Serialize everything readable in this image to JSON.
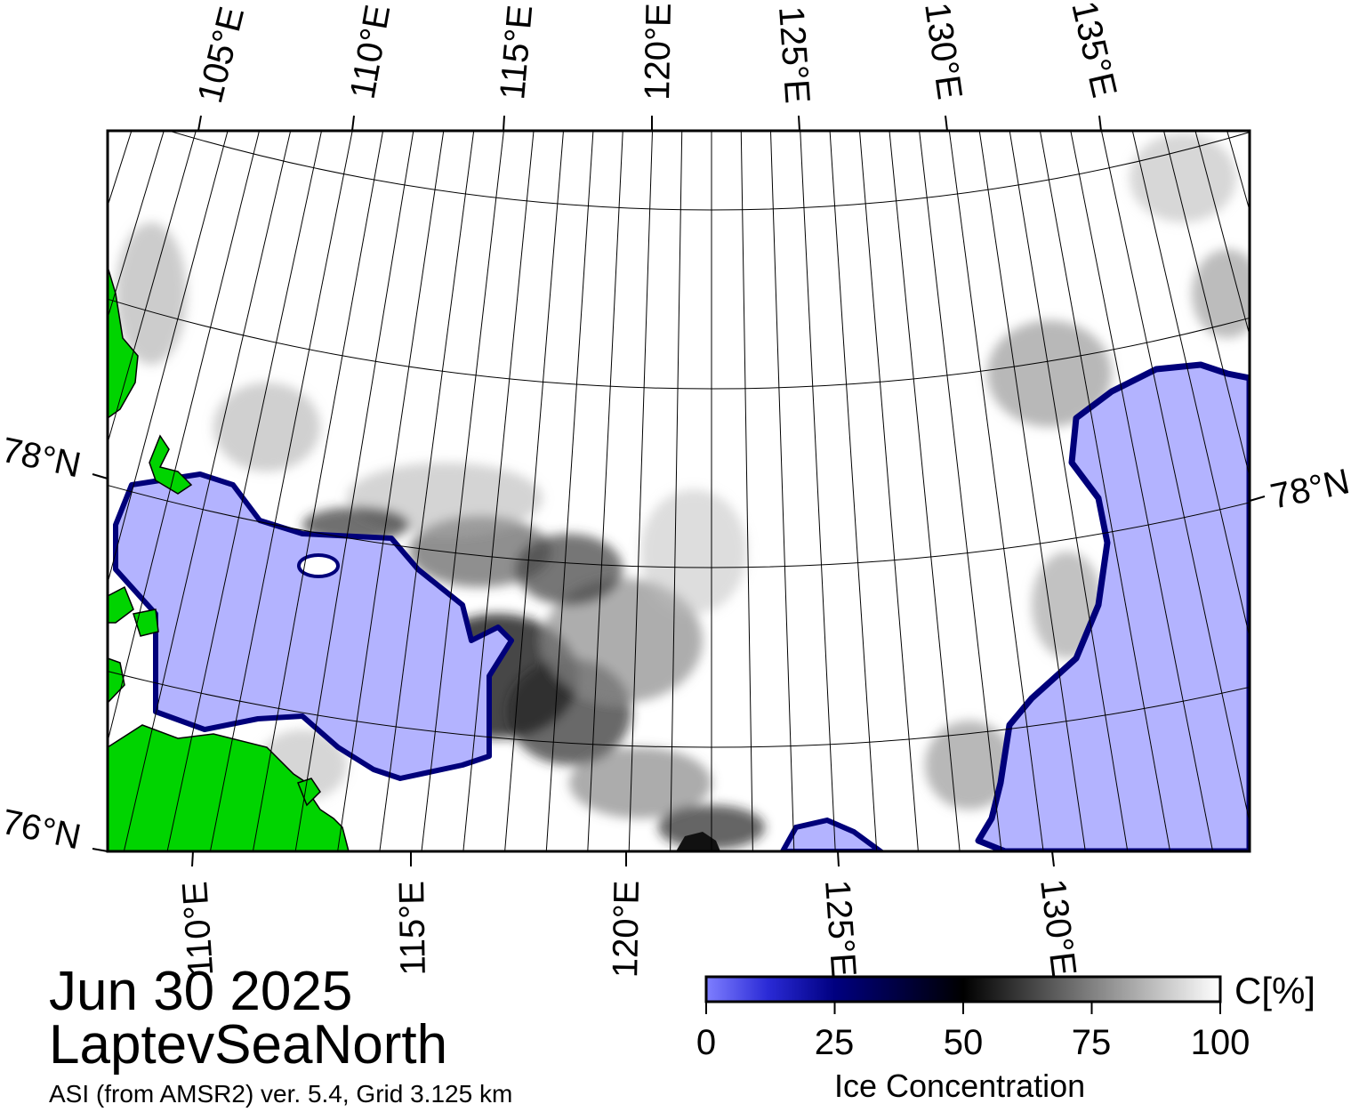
{
  "map": {
    "date": "Jun 30 2025",
    "region": "LaptevSeaNorth",
    "source": "ASI (from AMSR2) ver. 5.4,  Grid 3.125 km",
    "top_lon_labels": [
      "105°E",
      "110°E",
      "115°E",
      "120°E",
      "125°E",
      "130°E",
      "135°E"
    ],
    "bottom_lon_labels": [
      "110°E",
      "115°E",
      "120°E",
      "125°E",
      "130°E"
    ],
    "left_lat_labels": [
      "78°N",
      "76°N"
    ],
    "right_lat_labels": [
      "78°N"
    ],
    "colors": {
      "land": "#00d400",
      "land_border": "#7f7f7f",
      "open_water": "#b3b3ff",
      "coast_edge": "#00007a",
      "frame": "#000000",
      "graticule": "#000000"
    }
  },
  "colorbar": {
    "title": "Ice Concentration",
    "unit": "C[%]",
    "ticks": [
      "0",
      "25",
      "50",
      "75",
      "100"
    ],
    "range": [
      0,
      100
    ],
    "stops": [
      {
        "value": 0,
        "color": "#7f7fff"
      },
      {
        "value": 12,
        "color": "#2a2ad6"
      },
      {
        "value": 25,
        "color": "#000080"
      },
      {
        "value": 50,
        "color": "#000000"
      },
      {
        "value": 75,
        "color": "#808080"
      },
      {
        "value": 100,
        "color": "#ffffff"
      }
    ]
  }
}
